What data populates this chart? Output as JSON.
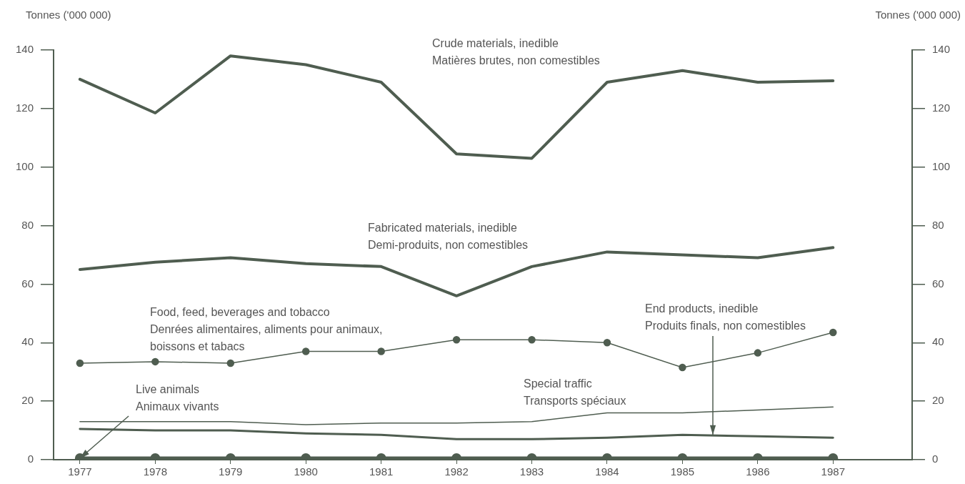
{
  "chart_data": {
    "type": "line",
    "ylabel": "Tonnes ('000 000)",
    "y2label": "Tonnes ('000 000)",
    "x": [
      1977,
      1978,
      1979,
      1980,
      1981,
      1982,
      1983,
      1984,
      1985,
      1986,
      1987
    ],
    "xlim": [
      1976.65,
      1988.05
    ],
    "xticks": [
      1977,
      1978,
      1979,
      1980,
      1981,
      1982,
      1983,
      1984,
      1985,
      1986,
      1987
    ],
    "ylim": [
      0,
      140
    ],
    "yticks": [
      0,
      20,
      40,
      60,
      80,
      100,
      120,
      140
    ],
    "y2lim": [
      0,
      140
    ],
    "y2ticks": [
      0,
      20,
      40,
      60,
      80,
      100,
      120,
      140
    ],
    "grid": false,
    "legend": false,
    "series": [
      {
        "color": "#4f5d50",
        "marker": "none",
        "values": [
          130,
          118.5,
          138,
          135,
          129,
          104.5,
          103,
          129,
          133,
          129,
          129.5
        ]
      },
      {
        "color": "#4f5d50",
        "marker": "none",
        "values": [
          65,
          67.5,
          69,
          67,
          66,
          56,
          66,
          71,
          70,
          69,
          72.5
        ]
      },
      {
        "color": "#4f5d50",
        "marker": "circle",
        "values": [
          33,
          33.5,
          33,
          37,
          37,
          41,
          41,
          40,
          31.5,
          36.5,
          43.5
        ]
      },
      {
        "color": "#4f5d50",
        "marker": "circle",
        "values": [
          0.5,
          0.5,
          0.5,
          0.5,
          0.5,
          0.5,
          0.5,
          0.5,
          0.5,
          0.5,
          0.5
        ]
      },
      {
        "color": "#4f5d50",
        "marker": "none",
        "values": [
          13,
          13,
          13,
          12,
          12.5,
          12.5,
          13,
          16,
          16,
          17,
          18
        ]
      },
      {
        "color": "#4f5d50",
        "marker": "none",
        "values": [
          10.5,
          10,
          10,
          9,
          8.5,
          7,
          7,
          7.5,
          8.5,
          8,
          7.5
        ]
      }
    ],
    "annotations": [
      "Crude materials, inedible\nMatières brutes, non comestibles",
      "Fabricated materials, inedible\nDemi-produits, non comestibles",
      "Food, feed, beverages and tobacco\nDenrées alimentaires, aliments pour animaux,\nboissons et tabacs",
      {
        "text": "Live animals\nAnimaux vivants",
        "x": 1977,
        "y": 0.5
      },
      "Special traffic\nTransports spéciaux",
      {
        "text": "End products, inedible\nProduits finals, non comestibles",
        "x": 1985.4,
        "y": 8.5
      }
    ]
  }
}
